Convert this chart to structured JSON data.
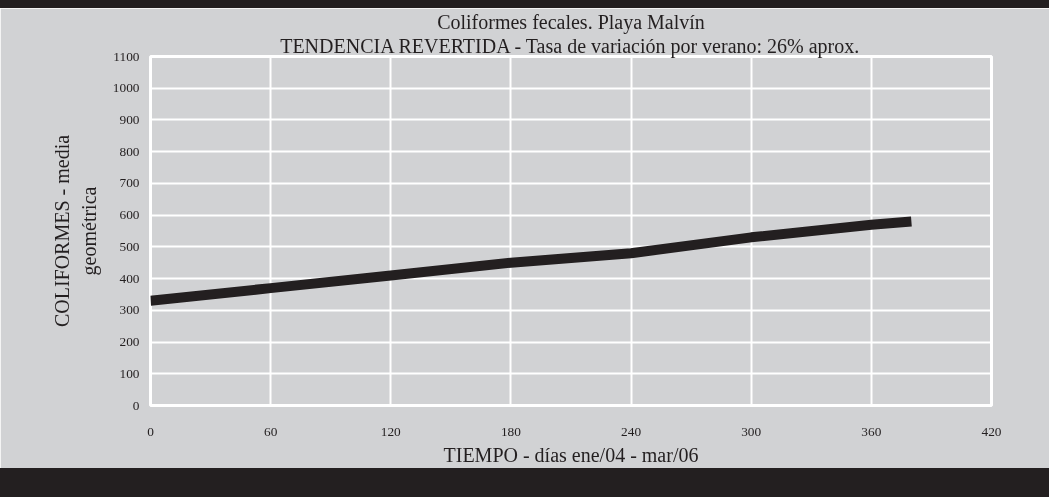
{
  "chart_data": {
    "type": "line",
    "title": "Coliformes fecales. Playa Malvín",
    "subtitle": "TENDENCIA REVERTIDA - Tasa de variación por verano: 26% aprox.",
    "xlabel": "TIEMPO - días ene/04 - mar/06",
    "ylabel": "COLIFORMES - media\ngeométrica",
    "x": [
      0,
      60,
      120,
      180,
      240,
      300,
      360,
      380
    ],
    "series": [
      {
        "color": "#231f20",
        "values": [
          330,
          370,
          410,
          450,
          480,
          530,
          570,
          580
        ]
      }
    ],
    "xlim": [
      0,
      420
    ],
    "xticks": [
      0,
      60,
      120,
      180,
      240,
      300,
      360,
      420
    ],
    "ylim": [
      0,
      1100
    ],
    "yticks": [
      0,
      100,
      200,
      300,
      400,
      500,
      600,
      700,
      800,
      900,
      1000,
      1100
    ],
    "grid": true,
    "marker": "none",
    "line_style": "solid"
  }
}
